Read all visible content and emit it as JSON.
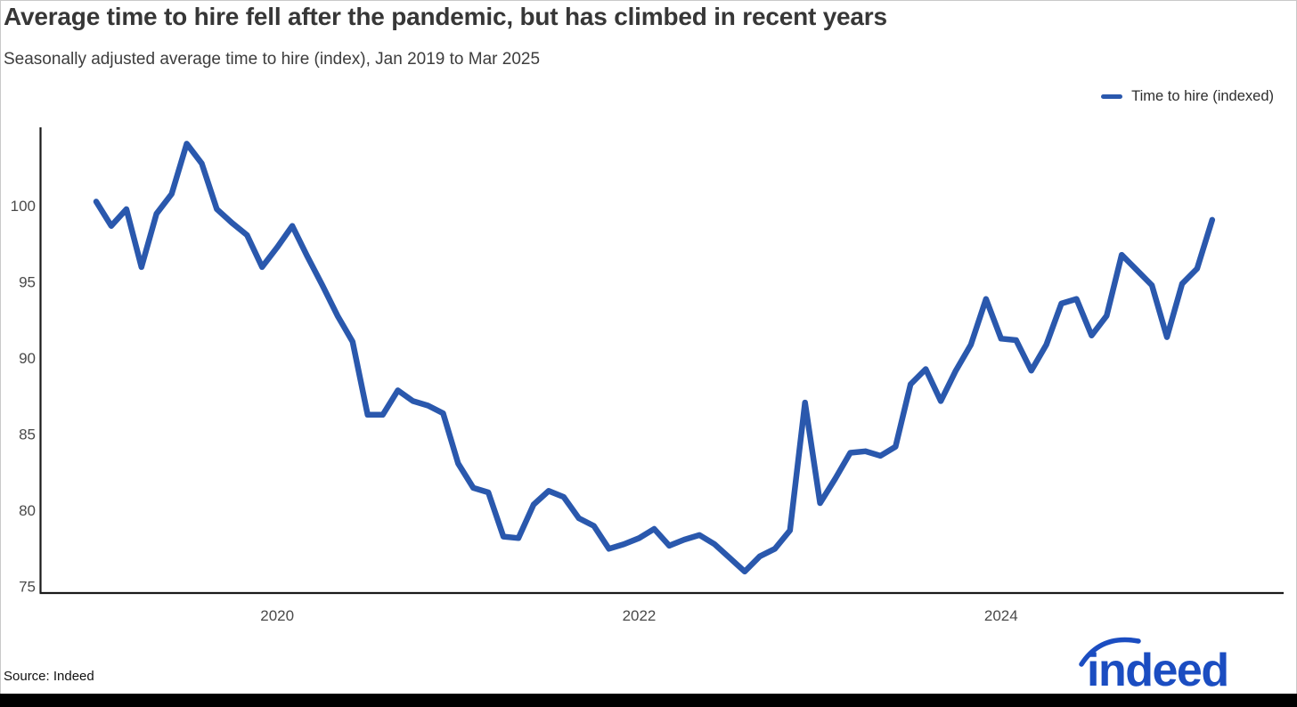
{
  "page": {
    "title": "Average time to hire fell after the pandemic, but has climbed in recent years",
    "subtitle": "Seasonally adjusted average time to hire (index), Jan 2019 to Mar 2025",
    "source": "Source: Indeed",
    "logo_text": "indeed"
  },
  "legend": {
    "label": "Time to hire (indexed)"
  },
  "colors": {
    "line": "#2A58AD",
    "axis": "#1a1a1a",
    "tick_text": "#4a4a4a",
    "logo_blue": "#1B4DC1"
  },
  "chart_data": {
    "type": "line",
    "title": "Average time to hire fell after the pandemic, but has climbed in recent years",
    "subtitle": "Seasonally adjusted average time to hire (index), Jan 2019 to Mar 2025",
    "legend_position": "top-right",
    "grid": false,
    "xlabel": "",
    "ylabel": "",
    "ylim": [
      75,
      105.5
    ],
    "y_ticks": [
      75,
      80,
      85,
      90,
      95,
      100
    ],
    "x_ticks": [
      {
        "label": "2020",
        "month_index": 12
      },
      {
        "label": "2022",
        "month_index": 36
      },
      {
        "label": "2024",
        "month_index": 60
      }
    ],
    "series": [
      {
        "name": "Time to hire (indexed)",
        "frequency": "monthly",
        "start": "Jan 2019",
        "end": "Mar 2025",
        "values": [
          100.3,
          98.7,
          99.8,
          96.0,
          99.5,
          100.8,
          104.1,
          102.8,
          99.8,
          98.9,
          98.1,
          96.0,
          97.3,
          98.7,
          96.7,
          94.8,
          92.8,
          91.1,
          86.3,
          86.3,
          87.9,
          87.2,
          86.9,
          86.4,
          83.1,
          81.5,
          81.2,
          78.3,
          78.2,
          80.4,
          81.3,
          80.9,
          79.5,
          79.0,
          77.5,
          77.8,
          78.2,
          78.8,
          77.7,
          78.1,
          78.4,
          77.8,
          76.9,
          76.0,
          77.0,
          77.5,
          78.7,
          87.1,
          80.5,
          82.1,
          83.8,
          83.9,
          83.6,
          84.2,
          88.3,
          89.3,
          87.2,
          89.2,
          90.9,
          93.9,
          91.3,
          91.2,
          89.2,
          90.9,
          93.6,
          93.9,
          91.5,
          92.8,
          96.8,
          95.8,
          94.8,
          91.4,
          94.9,
          95.9,
          99.1
        ]
      }
    ]
  }
}
